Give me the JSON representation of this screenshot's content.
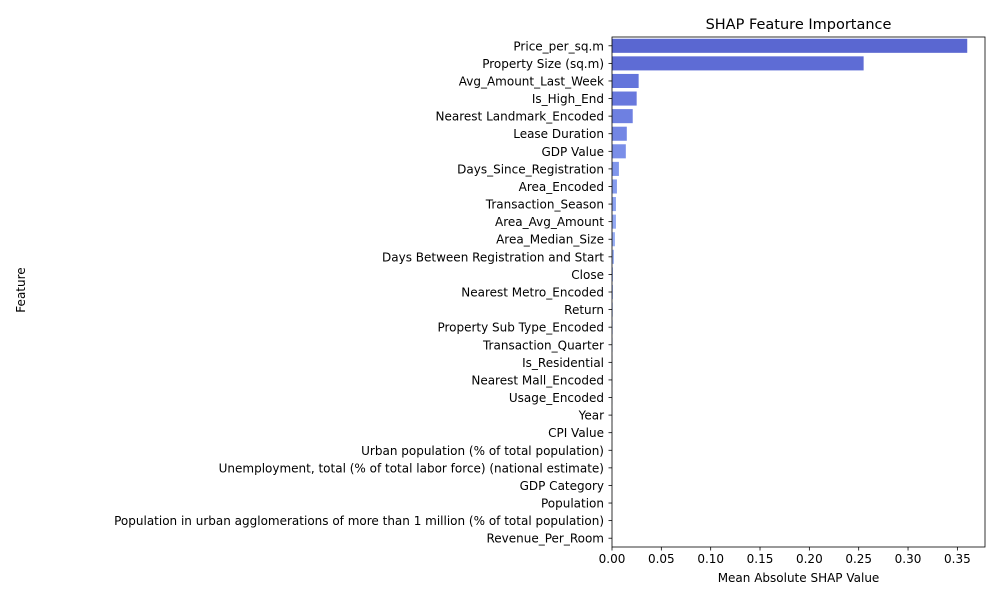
{
  "chart_data": {
    "type": "bar",
    "orientation": "horizontal",
    "title": "SHAP Feature Importance",
    "xlabel": "Mean Absolute SHAP Value",
    "ylabel": "Feature",
    "xlim": [
      0,
      0.378
    ],
    "xticks": [
      0.0,
      0.05,
      0.1,
      0.15,
      0.2,
      0.25,
      0.3,
      0.35
    ],
    "xtick_labels": [
      "0.00",
      "0.05",
      "0.10",
      "0.15",
      "0.20",
      "0.25",
      "0.30",
      "0.35"
    ],
    "grid": false,
    "legend": "none",
    "categories": [
      "Price_per_sq.m",
      "Property Size (sq.m)",
      "Avg_Amount_Last_Week",
      "Is_High_End",
      "Nearest Landmark_Encoded",
      "Lease Duration",
      "GDP Value",
      "Days_Since_Registration",
      "Area_Encoded",
      "Transaction_Season",
      "Area_Avg_Amount",
      "Area_Median_Size",
      "Days Between Registration and Start",
      "Close",
      "Nearest Metro_Encoded",
      "Return",
      "Property Sub Type_Encoded",
      "Transaction_Quarter",
      "Is_Residential",
      "Nearest Mall_Encoded",
      "Usage_Encoded",
      "Year",
      "CPI Value",
      "Urban population (% of total population)",
      "Unemployment, total (% of total labor force) (national estimate)",
      "GDP Category",
      "Population",
      "Population in urban agglomerations of more than 1 million (% of total population)",
      "Revenue_Per_Room"
    ],
    "values": [
      0.36,
      0.255,
      0.027,
      0.025,
      0.021,
      0.015,
      0.014,
      0.007,
      0.005,
      0.004,
      0.004,
      0.003,
      0.002,
      0.001,
      0.001,
      0.0008,
      0.0007,
      0.0006,
      0.0005,
      0.0005,
      0.0004,
      0.0004,
      0.0003,
      0.0003,
      0.0002,
      0.0002,
      0.0002,
      0.0001,
      0.0001
    ],
    "colors": [
      "#5a67d1",
      "#5e6cd5",
      "#6475db",
      "#6878dd",
      "#6e80e1",
      "#7386e4",
      "#7a8ee8",
      "#8096eb",
      "#869cee",
      "#8da3f1",
      "#93a9f3",
      "#99aff5",
      "#9fb4f6",
      "#a6baf8",
      "#acbff8",
      "#b2c4f9",
      "#b8c8fa",
      "#bdccfa",
      "#c3d0fa",
      "#c8d4fa",
      "#cdd7fa",
      "#d2dafa",
      "#d6ddf9",
      "#dbe0f8",
      "#dfe2f7",
      "#e2e4f5",
      "#e5e6f3",
      "#e8e8f1",
      "#eaeaef"
    ]
  }
}
